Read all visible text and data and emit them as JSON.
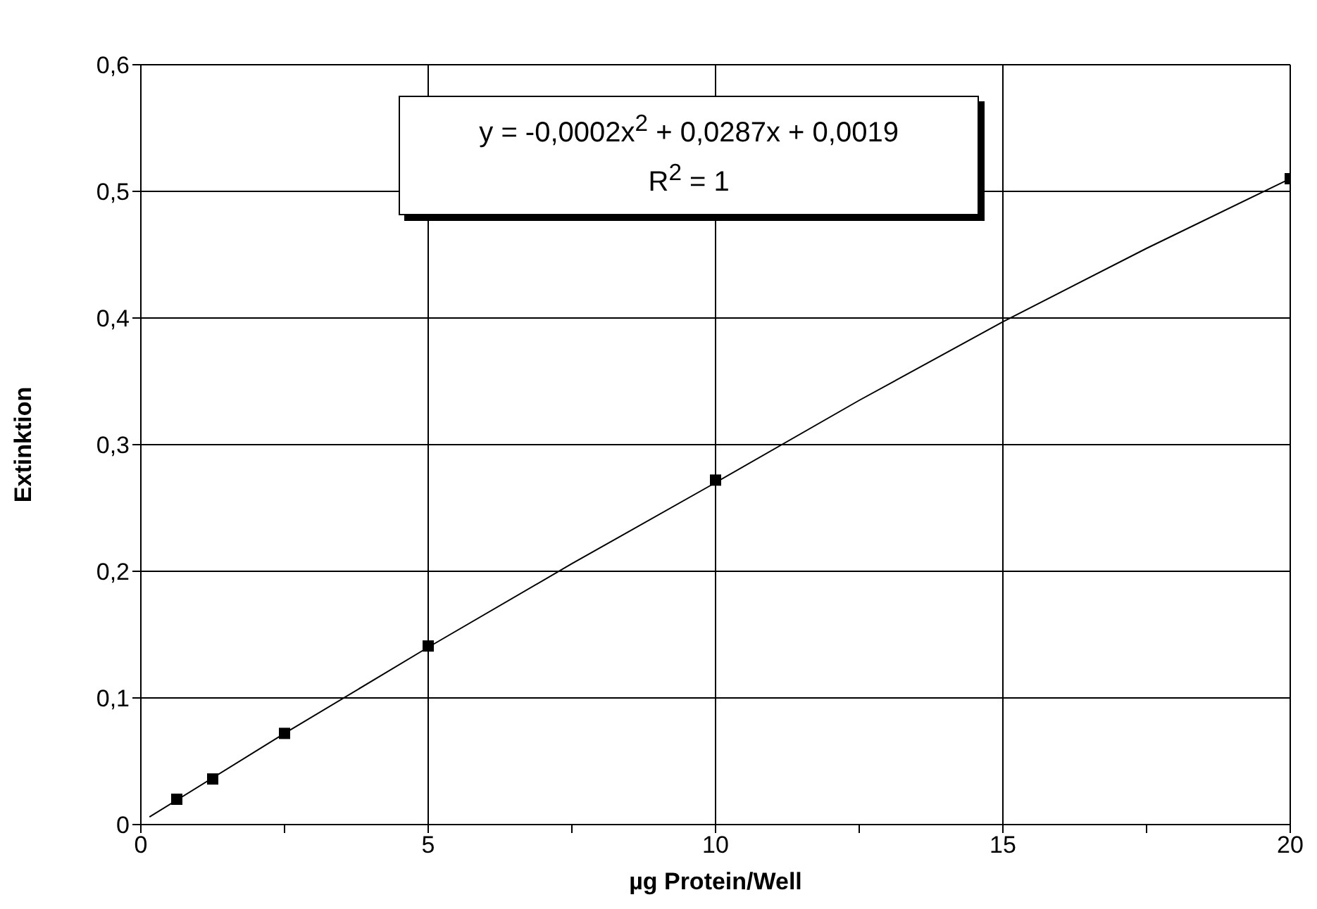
{
  "chart_data": {
    "type": "scatter",
    "xlabel": "µg Protein/Well",
    "ylabel": "Extinktion",
    "annotations": [
      "y = -0,0002x$^{2}$ + 0,0287x + 0,0019",
      "R$^{2}$ = 1"
    ],
    "xlim": [
      0,
      20
    ],
    "xticks": [
      0,
      {
        "value": 2.5,
        "label": null
      },
      5,
      {
        "value": 7.5,
        "label": null
      },
      10,
      {
        "value": 12.5,
        "label": null
      },
      15,
      {
        "value": 17.5,
        "label": null
      },
      20
    ],
    "ylim": [
      0,
      0.6
    ],
    "yticks": [
      0,
      {
        "value": 0.1,
        "label": "0,1"
      },
      {
        "value": 0.2,
        "label": "0,2"
      },
      {
        "value": 0.3,
        "label": "0,3"
      },
      {
        "value": 0.4,
        "label": "0,4"
      },
      {
        "value": 0.5,
        "label": "0,5"
      },
      {
        "value": 0.6,
        "label": "0,6"
      }
    ],
    "grid": true,
    "marker": "square",
    "series": [
      {
        "color": "#000000",
        "x": [
          0.625,
          1.25,
          2.5,
          5,
          10,
          20
        ],
        "values": [
          0.02,
          0.036,
          0.072,
          0.141,
          0.272,
          0.51
        ]
      },
      {
        "type": "line",
        "color": "#000000",
        "marker": "none",
        "x": [
          0.15,
          2.5,
          5,
          7.5,
          10,
          12.5,
          15,
          17.5,
          20
        ],
        "values": [
          0.006,
          0.072,
          0.14,
          0.206,
          0.27,
          0.335,
          0.397,
          0.455,
          0.51
        ]
      }
    ]
  }
}
